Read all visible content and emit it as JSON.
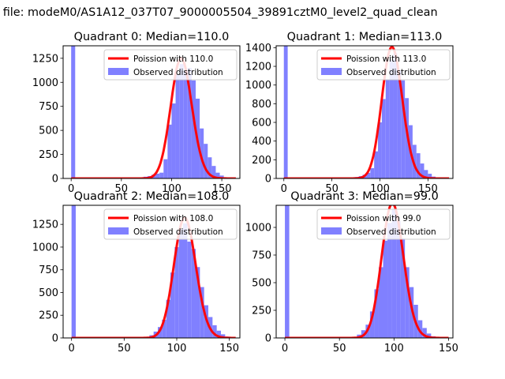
{
  "figure": {
    "suptitle": "n file: modeM0/AS1A12_037T07_9000005504_39891cztM0_level2_quad_clean"
  },
  "colors": {
    "hist": "#8080ff",
    "poisson": "#ff0000",
    "axes": "#000000",
    "legend_border": "#cccccc"
  },
  "chart_data": [
    {
      "type": "histogram",
      "title": "Quadrant 0: Median=110.0",
      "xlim": [
        -8,
        168
      ],
      "ylim": [
        0,
        1380
      ],
      "xticks": [
        0,
        50,
        100,
        150
      ],
      "yticks": [
        0,
        250,
        500,
        750,
        1000,
        1250
      ],
      "bin_width": 4,
      "zero_bin_height": 1380,
      "bins_x_start": 64,
      "bins_y": [
        5,
        8,
        18,
        25,
        38,
        50,
        60,
        200,
        560,
        780,
        1080,
        1190,
        1120,
        1150,
        1020,
        830,
        520,
        360,
        220,
        130,
        60,
        30,
        12,
        6,
        3
      ],
      "poisson_lambda": 110.0,
      "legend": {
        "poisson_label": "Poission with 110.0",
        "hist_label": "Observed distribution",
        "position": "upper right"
      }
    },
    {
      "type": "histogram",
      "title": "Quadrant 1: Median=113.0",
      "xlim": [
        -8,
        176
      ],
      "ylim": [
        0,
        1420
      ],
      "xticks": [
        0,
        50,
        100,
        150
      ],
      "yticks": [
        0,
        200,
        400,
        600,
        800,
        1000,
        1200,
        1400
      ],
      "bin_width": 4,
      "zero_bin_height": 1420,
      "bins_x_start": 66,
      "bins_y": [
        4,
        6,
        15,
        25,
        40,
        60,
        110,
        290,
        600,
        850,
        1060,
        1270,
        1340,
        1150,
        1050,
        860,
        570,
        360,
        270,
        160,
        90,
        50,
        20,
        8,
        3
      ],
      "poisson_lambda": 113.0,
      "legend": {
        "poisson_label": "Poission with 113.0",
        "hist_label": "Observed distribution",
        "position": "upper right"
      }
    },
    {
      "type": "histogram",
      "title": "Quadrant 2: Median=108.0",
      "xlim": [
        -8,
        160
      ],
      "ylim": [
        0,
        1460
      ],
      "xticks": [
        0,
        50,
        100,
        150
      ],
      "yticks": [
        0,
        250,
        500,
        750,
        1000,
        1250
      ],
      "bin_width": 4,
      "zero_bin_height": 1460,
      "bins_x_start": 66,
      "bins_y": [
        5,
        10,
        30,
        70,
        120,
        200,
        420,
        720,
        1000,
        1200,
        1260,
        1060,
        980,
        780,
        560,
        360,
        230,
        140,
        80,
        40,
        15,
        5
      ],
      "poisson_lambda": 108.0,
      "legend": {
        "poisson_label": "Poission with 108.0",
        "hist_label": "Observed distribution",
        "position": "upper right"
      }
    },
    {
      "type": "histogram",
      "title": "Quadrant 3: Median=99.0",
      "xlim": [
        -8,
        154
      ],
      "ylim": [
        0,
        1200
      ],
      "xticks": [
        0,
        50,
        100,
        150
      ],
      "yticks": [
        0,
        250,
        500,
        750,
        1000
      ],
      "bin_width": 4,
      "zero_bin_height": 1200,
      "bins_x_start": 58,
      "bins_y": [
        5,
        10,
        30,
        70,
        120,
        240,
        440,
        640,
        880,
        1040,
        1160,
        1060,
        900,
        640,
        460,
        300,
        160,
        90,
        40,
        15,
        6,
        2
      ],
      "poisson_lambda": 99.0,
      "legend": {
        "poisson_label": "Poission with 99.0",
        "hist_label": "Observed distribution",
        "position": "upper right"
      }
    }
  ]
}
